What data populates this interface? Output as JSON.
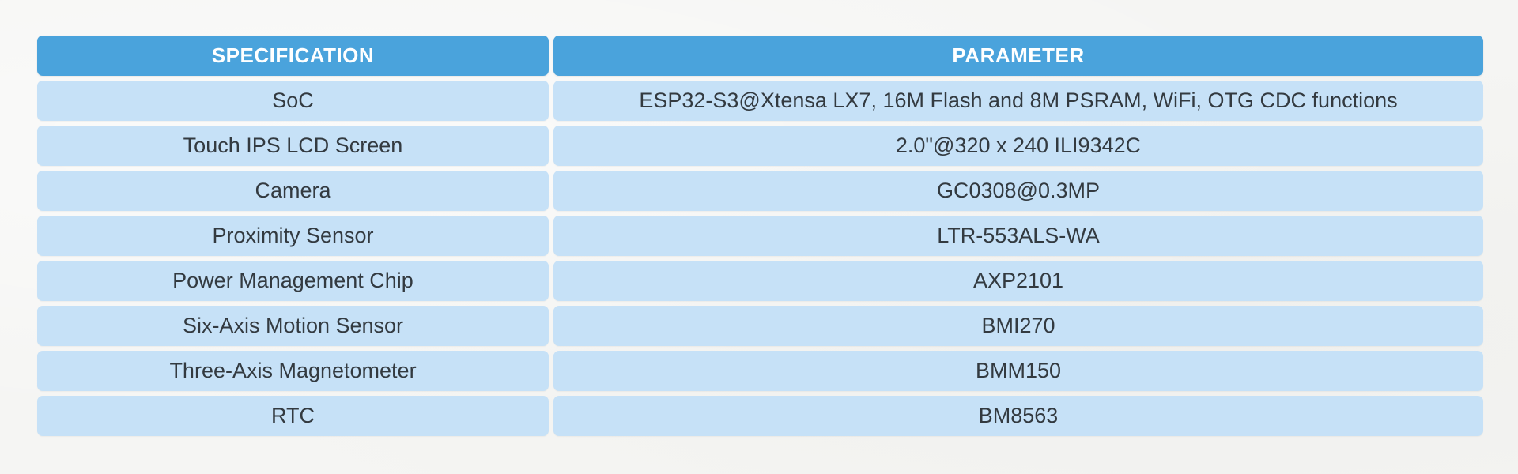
{
  "table": {
    "headers": {
      "specification": "SPECIFICATION",
      "parameter": "PARAMETER"
    },
    "rows": [
      {
        "specification": "SoC",
        "parameter": "ESP32-S3@Xtensa LX7, 16M Flash and 8M PSRAM, WiFi, OTG CDC functions"
      },
      {
        "specification": "Touch IPS LCD Screen",
        "parameter": "2.0\"@320 x 240 ILI9342C"
      },
      {
        "specification": "Camera",
        "parameter": "GC0308@0.3MP"
      },
      {
        "specification": "Proximity Sensor",
        "parameter": "LTR-553ALS-WA"
      },
      {
        "specification": "Power Management Chip",
        "parameter": "AXP2101"
      },
      {
        "specification": "Six-Axis Motion Sensor",
        "parameter": "BMI270"
      },
      {
        "specification": "Three-Axis Magnetometer",
        "parameter": "BMM150"
      },
      {
        "specification": "RTC",
        "parameter": "BM8563"
      }
    ]
  },
  "colors": {
    "header_background": "#4aa3dc",
    "row_background": "#c6e1f7",
    "header_text": "#ffffff",
    "body_text": "#333a40"
  }
}
